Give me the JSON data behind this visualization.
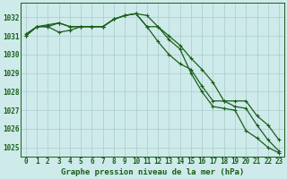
{
  "title": "Graphe pression niveau de la mer (hPa)",
  "background_color": "#ceeaea",
  "grid_color": "#aacccc",
  "line_color": "#1a5e1a",
  "spine_color": "#1a5e1a",
  "xlim": [
    -0.5,
    23.5
  ],
  "ylim": [
    1024.5,
    1032.8
  ],
  "yticks": [
    1025,
    1026,
    1027,
    1028,
    1029,
    1030,
    1031,
    1032
  ],
  "xticks": [
    0,
    1,
    2,
    3,
    4,
    5,
    6,
    7,
    8,
    9,
    10,
    11,
    12,
    13,
    14,
    15,
    16,
    17,
    18,
    19,
    20,
    21,
    22,
    23
  ],
  "series1_x": [
    0,
    1,
    2,
    3,
    4,
    5,
    6,
    7,
    8,
    9,
    10,
    11,
    12,
    13,
    14,
    15,
    16,
    17,
    18,
    19,
    20,
    21,
    22,
    23
  ],
  "series1_y": [
    1031.0,
    1031.5,
    1031.5,
    1031.7,
    1031.5,
    1031.5,
    1031.5,
    1031.5,
    1031.9,
    1032.1,
    1032.2,
    1032.1,
    1031.5,
    1031.0,
    1030.5,
    1029.8,
    1029.2,
    1028.5,
    1027.5,
    1027.2,
    1027.1,
    1026.2,
    1025.4,
    1024.8
  ],
  "series2_x": [
    0,
    1,
    2,
    3,
    4,
    5,
    6,
    7,
    8,
    9,
    10,
    11,
    12,
    13,
    14,
    15,
    16,
    17,
    18,
    19,
    20,
    21,
    22,
    23
  ],
  "series2_y": [
    1031.1,
    1031.5,
    1031.6,
    1031.7,
    1031.5,
    1031.5,
    1031.5,
    1031.5,
    1031.9,
    1032.1,
    1032.2,
    1031.5,
    1030.7,
    1030.0,
    1029.5,
    1029.2,
    1028.3,
    1027.5,
    1027.5,
    1027.5,
    1027.5,
    1026.7,
    1026.2,
    1025.4
  ],
  "series3_x": [
    0,
    1,
    2,
    3,
    4,
    5,
    6,
    7,
    8,
    9,
    10,
    11,
    12,
    13,
    14,
    15,
    16,
    17,
    18,
    19,
    20,
    21,
    22,
    23
  ],
  "series3_y": [
    1031.0,
    1031.5,
    1031.5,
    1031.2,
    1031.3,
    1031.5,
    1031.5,
    1031.5,
    1031.9,
    1032.1,
    1032.2,
    1031.5,
    1031.5,
    1030.8,
    1030.3,
    1029.0,
    1028.0,
    1027.2,
    1027.1,
    1027.0,
    1025.9,
    1025.5,
    1025.0,
    1024.7
  ],
  "marker": "+",
  "markersize": 3.5,
  "linewidth": 0.9,
  "tick_fontsize": 5.5,
  "title_fontsize": 6.5
}
